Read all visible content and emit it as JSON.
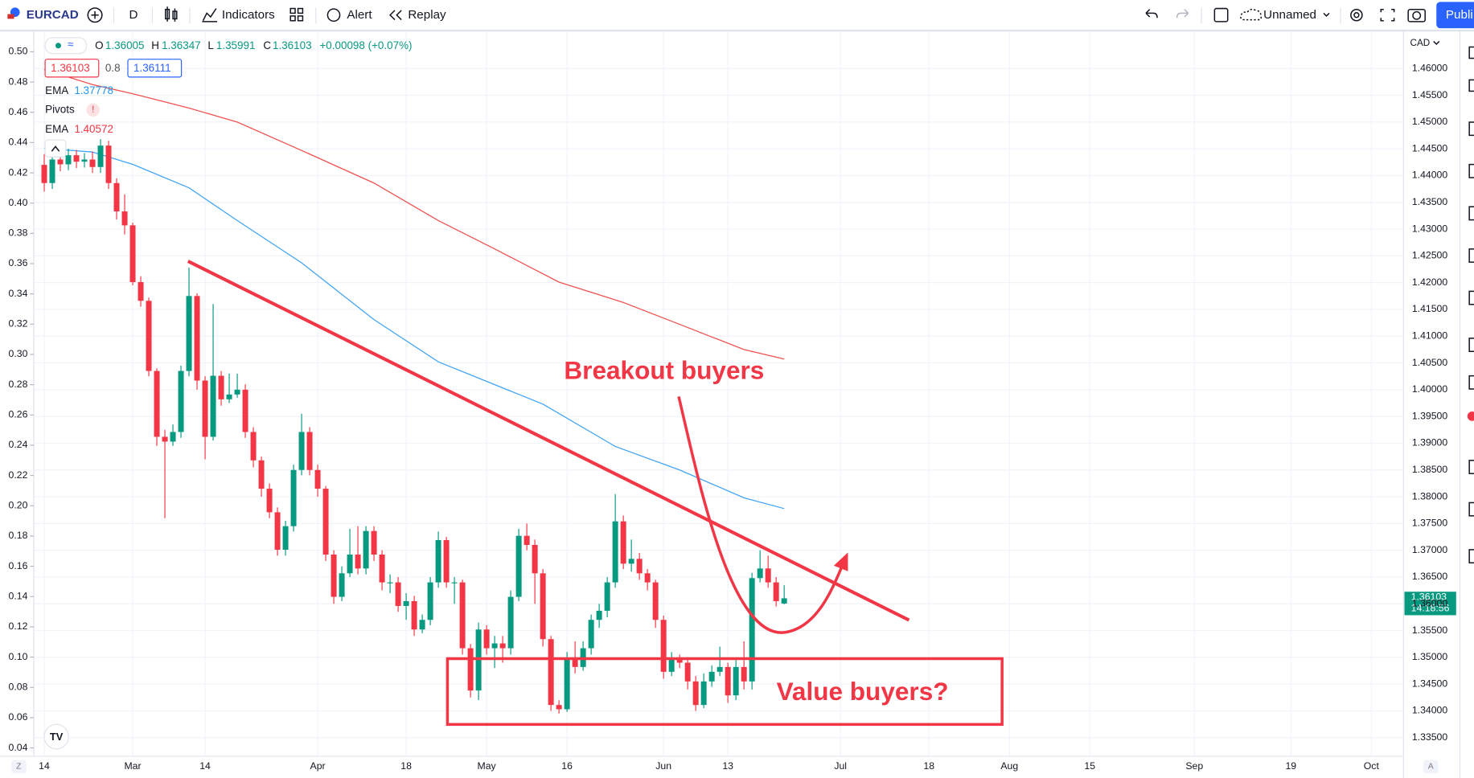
{
  "toolbar": {
    "symbol": "EURCAD",
    "interval": "D",
    "indicators": "Indicators",
    "alert": "Alert",
    "replay": "Replay",
    "layout": "Unnamed",
    "publish": "Publi"
  },
  "legend": {
    "o_label": "O",
    "h_label": "H",
    "l_label": "L",
    "c_label": "C",
    "change": "+0.00098 (+0.07%)",
    "spread": "0.8",
    "ask": "1.36111",
    "pivots": "Pivots",
    "pivots_warning": "!"
  },
  "axis": {
    "currency": "CAD",
    "countdown": "14:18:56",
    "z": "Z",
    "a": "A"
  },
  "annotations": {
    "breakout": "Breakout buyers",
    "value": "Value buyers?"
  },
  "chart_data": {
    "type": "candlestick",
    "up_color": "#089981",
    "down_color": "#f23645",
    "grid": true,
    "categories": [
      null,
      null,
      null,
      null,
      null,
      null,
      null,
      null,
      null,
      null,
      null,
      null,
      null,
      null,
      null,
      null,
      null,
      null,
      null,
      null,
      null,
      null,
      null,
      null,
      null,
      null,
      null,
      null,
      null,
      null,
      null,
      null,
      null,
      null,
      null,
      null,
      null,
      null,
      null,
      null,
      null,
      null,
      null,
      null,
      null,
      null,
      null,
      null,
      null,
      null,
      null,
      null,
      null,
      null,
      null,
      null,
      null,
      null,
      null,
      null,
      null,
      null,
      null,
      null,
      null,
      null,
      null,
      null,
      null,
      null,
      null,
      null,
      null,
      null,
      null,
      null,
      null,
      null,
      null,
      null,
      null,
      null,
      null,
      null,
      null,
      null,
      null,
      null,
      null,
      null,
      null,
      null,
      null
    ],
    "open": [
      1.442,
      1.4386,
      1.443,
      1.4421,
      1.4438,
      1.4426,
      1.443,
      1.4416,
      1.4456,
      1.4386,
      1.4333,
      1.4307,
      1.4201,
      1.4166,
      1.4035,
      1.3912,
      1.3903,
      1.3921,
      1.4035,
      1.4175,
      1.4017,
      1.3912,
      1.4026,
      1.3982,
      1.3991,
      1.4,
      1.3921,
      1.3868,
      1.3815,
      1.3771,
      1.3701,
      1.3745,
      1.385,
      1.3921,
      1.385,
      1.3815,
      1.3692,
      1.3613,
      1.3657,
      1.3692,
      1.3666,
      1.3736,
      1.3692,
      1.364,
      1.364,
      1.3596,
      1.3605,
      1.3552,
      1.357,
      1.364,
      1.3719,
      1.364,
      1.364,
      1.3517,
      1.3438,
      1.3552,
      1.3517,
      1.3526,
      1.3517,
      1.3613,
      1.3727,
      1.371,
      1.3657,
      1.3534,
      1.3411,
      1.3403,
      1.3499,
      1.3482,
      1.3517,
      1.357,
      1.3587,
      1.364,
      1.3754,
      1.3675,
      1.3684,
      1.3657,
      1.364,
      1.357,
      1.3473,
      1.3499,
      1.349,
      1.3455,
      1.3411,
      1.3455,
      1.3473,
      1.3482,
      1.3429,
      1.3482,
      1.3455,
      1.3648,
      1.3666,
      1.364,
      1.36005
    ],
    "high": [
      1.444,
      1.4445,
      1.4442,
      1.445,
      1.4448,
      1.4442,
      1.4445,
      1.4468,
      1.4465,
      1.4395,
      1.4365,
      1.4312,
      1.4212,
      1.4172,
      1.404,
      1.3925,
      1.3935,
      1.4045,
      1.4228,
      1.418,
      1.4025,
      1.416,
      1.4035,
      1.403,
      1.403,
      1.401,
      1.393,
      1.3875,
      1.3825,
      1.378,
      1.3755,
      1.386,
      1.3955,
      1.393,
      1.386,
      1.382,
      1.37,
      1.367,
      1.374,
      1.3745,
      1.3745,
      1.3745,
      1.37,
      1.3655,
      1.365,
      1.362,
      1.3615,
      1.358,
      1.365,
      1.3735,
      1.3725,
      1.365,
      1.3645,
      1.3525,
      1.3565,
      1.356,
      1.354,
      1.354,
      1.3625,
      1.374,
      1.375,
      1.372,
      1.3665,
      1.354,
      1.342,
      1.351,
      1.353,
      1.353,
      1.358,
      1.36,
      1.365,
      1.3805,
      1.3765,
      1.372,
      1.3695,
      1.3665,
      1.3645,
      1.3578,
      1.351,
      1.3505,
      1.35,
      1.3465,
      1.347,
      1.3485,
      1.352,
      1.349,
      1.3495,
      1.353,
      1.3658,
      1.37,
      1.369,
      1.365,
      1.36347
    ],
    "low": [
      1.437,
      1.4375,
      1.4408,
      1.441,
      1.4414,
      1.4415,
      1.4405,
      1.4405,
      1.4375,
      1.4318,
      1.429,
      1.4195,
      1.4155,
      1.4025,
      1.3895,
      1.376,
      1.3895,
      1.391,
      1.4025,
      1.4,
      1.387,
      1.3905,
      1.397,
      1.3975,
      1.3985,
      1.391,
      1.3855,
      1.38,
      1.376,
      1.369,
      1.369,
      1.3735,
      1.384,
      1.384,
      1.38,
      1.368,
      1.36,
      1.3605,
      1.365,
      1.3655,
      1.3655,
      1.368,
      1.3625,
      1.362,
      1.3585,
      1.357,
      1.354,
      1.3545,
      1.356,
      1.363,
      1.363,
      1.36,
      1.3505,
      1.3425,
      1.342,
      1.3505,
      1.348,
      1.349,
      1.3505,
      1.3605,
      1.37,
      1.36,
      1.352,
      1.34,
      1.3395,
      1.3398,
      1.347,
      1.3475,
      1.3505,
      1.3555,
      1.3575,
      1.363,
      1.3665,
      1.366,
      1.3645,
      1.3625,
      1.3555,
      1.346,
      1.3465,
      1.348,
      1.344,
      1.34,
      1.3405,
      1.3445,
      1.3465,
      1.3415,
      1.342,
      1.344,
      1.344,
      1.364,
      1.363,
      1.3595,
      1.35991
    ],
    "close": [
      1.4386,
      1.443,
      1.4421,
      1.4438,
      1.4426,
      1.443,
      1.4416,
      1.4456,
      1.4386,
      1.4333,
      1.4307,
      1.4201,
      1.4166,
      1.4035,
      1.3912,
      1.3903,
      1.3921,
      1.4035,
      1.4175,
      1.4017,
      1.3912,
      1.4026,
      1.3982,
      1.3991,
      1.4,
      1.3921,
      1.3868,
      1.3815,
      1.3771,
      1.3701,
      1.3745,
      1.385,
      1.3921,
      1.385,
      1.3815,
      1.3692,
      1.3613,
      1.3657,
      1.3692,
      1.3666,
      1.3736,
      1.3692,
      1.364,
      1.364,
      1.3596,
      1.3605,
      1.3552,
      1.357,
      1.364,
      1.3719,
      1.364,
      1.364,
      1.3517,
      1.3438,
      1.3552,
      1.3517,
      1.3526,
      1.3517,
      1.3613,
      1.3727,
      1.371,
      1.3657,
      1.3534,
      1.3411,
      1.3403,
      1.3499,
      1.3482,
      1.3517,
      1.357,
      1.3587,
      1.364,
      1.3754,
      1.3675,
      1.3684,
      1.3657,
      1.364,
      1.357,
      1.3473,
      1.3499,
      1.349,
      1.3455,
      1.3411,
      1.3455,
      1.3473,
      1.3482,
      1.3429,
      1.3482,
      1.3455,
      1.3648,
      1.3666,
      1.364,
      1.3605,
      1.36103
    ],
    "overlays": [
      {
        "name": "EMA",
        "color": "#42a5f5",
        "x": [
          0,
          6,
          11,
          18,
          24,
          32,
          41,
          49,
          62,
          71,
          79,
          87,
          92
        ],
        "values": [
          1.4451,
          1.4444,
          1.4421,
          1.4377,
          1.4316,
          1.4237,
          1.4131,
          1.4052,
          1.3973,
          1.3894,
          1.385,
          1.3798,
          1.37778
        ]
      },
      {
        "name": "EMA",
        "color": "#ef5350",
        "x": [
          0,
          6,
          11,
          18,
          24,
          32,
          41,
          49,
          56,
          64,
          72,
          79,
          87,
          92
        ],
        "values": [
          1.4598,
          1.457,
          1.4553,
          1.4526,
          1.45,
          1.4447,
          1.4386,
          1.4316,
          1.4263,
          1.4201,
          1.4163,
          1.4122,
          1.4075,
          1.40572
        ]
      }
    ],
    "xlim": [
      -5.5,
      169
    ],
    "xticks": [
      {
        "value": 0,
        "label": "14"
      },
      {
        "value": 11,
        "label": "Mar"
      },
      {
        "value": 20,
        "label": "14"
      },
      {
        "value": 34,
        "label": "Apr"
      },
      {
        "value": 45,
        "label": "18"
      },
      {
        "value": 55,
        "label": "May"
      },
      {
        "value": 65,
        "label": "16"
      },
      {
        "value": 77,
        "label": "Jun"
      },
      {
        "value": 85,
        "label": "13"
      },
      {
        "value": 99,
        "label": "Jul"
      },
      {
        "value": 110,
        "label": "18"
      },
      {
        "value": 120,
        "label": "Aug"
      },
      {
        "value": 130,
        "label": "15"
      },
      {
        "value": 143,
        "label": "Sep"
      },
      {
        "value": 155,
        "label": "19"
      },
      {
        "value": 165,
        "label": "Oct"
      }
    ],
    "ylim": [
      1.3315,
      1.467
    ],
    "yticks": [
      {
        "value": 1.46,
        "label": "1.46000"
      },
      {
        "value": 1.455,
        "label": "1.45500"
      },
      {
        "value": 1.45,
        "label": "1.45000"
      },
      {
        "value": 1.445,
        "label": "1.44500"
      },
      {
        "value": 1.44,
        "label": "1.44000"
      },
      {
        "value": 1.435,
        "label": "1.43500"
      },
      {
        "value": 1.43,
        "label": "1.43000"
      },
      {
        "value": 1.425,
        "label": "1.42500"
      },
      {
        "value": 1.42,
        "label": "1.42000"
      },
      {
        "value": 1.415,
        "label": "1.41500"
      },
      {
        "value": 1.41,
        "label": "1.41000"
      },
      {
        "value": 1.405,
        "label": "1.40500"
      },
      {
        "value": 1.4,
        "label": "1.40000"
      },
      {
        "value": 1.395,
        "label": "1.39500"
      },
      {
        "value": 1.39,
        "label": "1.39000"
      },
      {
        "value": 1.385,
        "label": "1.38500"
      },
      {
        "value": 1.38,
        "label": "1.38000"
      },
      {
        "value": 1.375,
        "label": "1.37500"
      },
      {
        "value": 1.37,
        "label": "1.37000"
      },
      {
        "value": 1.365,
        "label": "1.36500"
      },
      {
        "value": 1.36,
        "label": "1.36000"
      },
      {
        "value": 1.355,
        "label": "1.35500"
      },
      {
        "value": 1.35,
        "label": "1.35000"
      },
      {
        "value": 1.345,
        "label": "1.34500"
      },
      {
        "value": 1.34,
        "label": "1.34000"
      },
      {
        "value": 1.335,
        "label": "1.33500"
      }
    ],
    "y2lim": [
      0.0344,
      0.5137
    ],
    "y2ticks": [
      {
        "value": 0.5,
        "label": "0.50"
      },
      {
        "value": 0.48,
        "label": "0.48"
      },
      {
        "value": 0.46,
        "label": "0.46"
      },
      {
        "value": 0.44,
        "label": "0.44"
      },
      {
        "value": 0.42,
        "label": "0.42"
      },
      {
        "value": 0.4,
        "label": "0.40"
      },
      {
        "value": 0.38,
        "label": "0.38"
      },
      {
        "value": 0.36,
        "label": "0.36"
      },
      {
        "value": 0.34,
        "label": "0.34"
      },
      {
        "value": 0.32,
        "label": "0.32"
      },
      {
        "value": 0.3,
        "label": "0.30"
      },
      {
        "value": 0.28,
        "label": "0.28"
      },
      {
        "value": 0.26,
        "label": "0.26"
      },
      {
        "value": 0.24,
        "label": "0.24"
      },
      {
        "value": 0.22,
        "label": "0.22"
      },
      {
        "value": 0.2,
        "label": "0.20"
      },
      {
        "value": 0.18,
        "label": "0.18"
      },
      {
        "value": 0.16,
        "label": "0.16"
      },
      {
        "value": 0.14,
        "label": "0.14"
      },
      {
        "value": 0.12,
        "label": "0.12"
      },
      {
        "value": 0.1,
        "label": "0.10"
      },
      {
        "value": 0.08,
        "label": "0.08"
      },
      {
        "value": 0.06,
        "label": "0.06"
      },
      {
        "value": 0.04,
        "label": "0.04"
      }
    ]
  }
}
